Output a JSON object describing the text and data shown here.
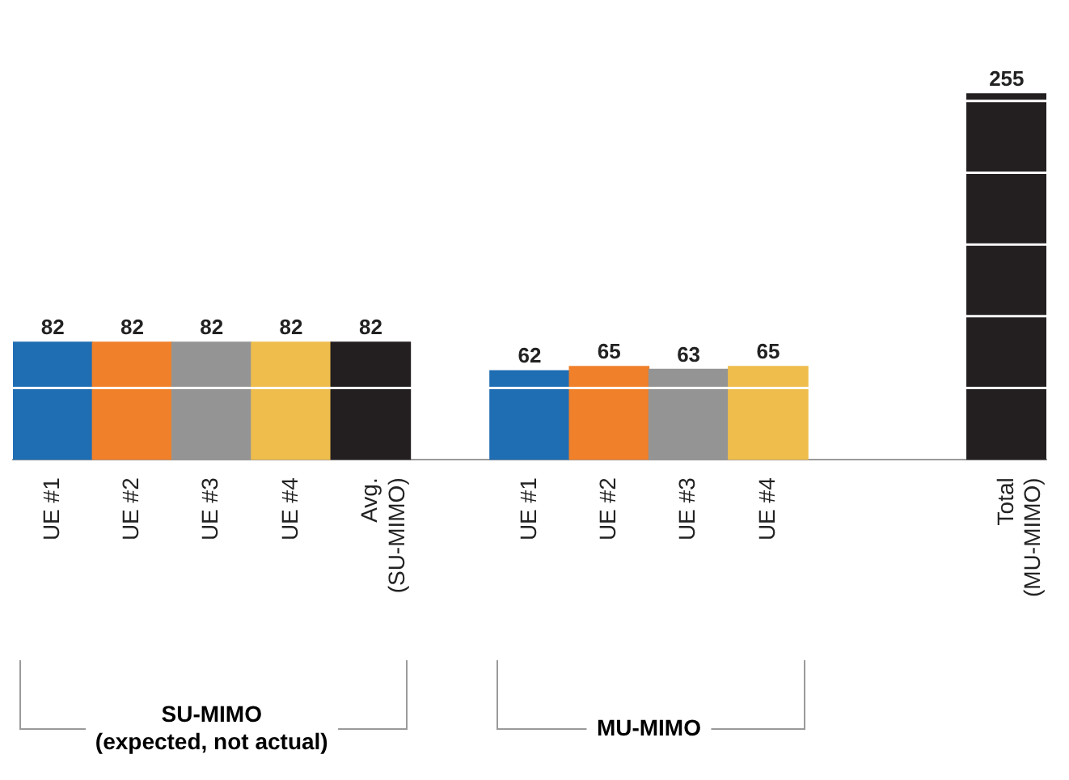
{
  "chart_data": {
    "type": "bar",
    "categories": [
      "UE #1",
      "UE #2",
      "UE #3",
      "UE #4",
      "Avg.\n(SU-MIMO)",
      null,
      "UE #1",
      "UE #2",
      "UE #3",
      "UE #4",
      null,
      null,
      "Total\n(MU-MIMO)"
    ],
    "values": [
      82,
      82,
      82,
      82,
      82,
      null,
      62,
      65,
      63,
      65,
      null,
      null,
      255
    ],
    "colors": [
      "#1f6db3",
      "#f0802a",
      "#949494",
      "#efbd4c",
      "#231f20",
      null,
      "#1f6db3",
      "#f0802a",
      "#949494",
      "#efbd4c",
      null,
      null,
      "#231f20"
    ],
    "grid": "y",
    "tick_labels": "x",
    "data_labels": true,
    "legend": false,
    "annotations": [
      "SU-MIMO\n(expected, not actual)",
      "MU-MIMO"
    ]
  }
}
